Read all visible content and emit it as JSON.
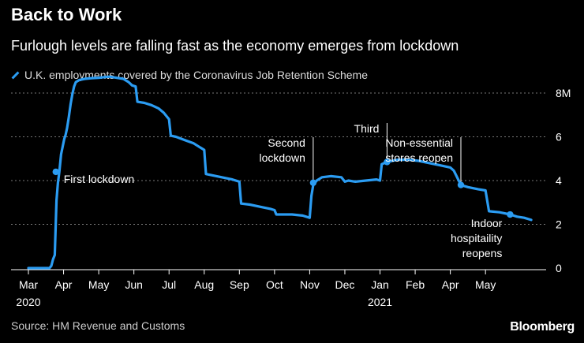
{
  "title": "Back to Work",
  "subtitle": "Furlough levels are falling fast as the economy emerges from lockdown",
  "source": "Source: HM Revenue and Customs",
  "brand": "Bloomberg",
  "colors": {
    "line": "#2b9cf2",
    "background": "#000000",
    "grid": "#777777"
  },
  "chart_data": {
    "type": "line",
    "title": "Back to Work",
    "ylabel": "",
    "xlabel": "",
    "ylim": [
      0,
      8
    ],
    "xlim": [
      0,
      14.5
    ],
    "grid": true,
    "y_ticks": [
      {
        "value": 8,
        "label": "8M"
      },
      {
        "value": 6,
        "label": "6"
      },
      {
        "value": 4,
        "label": "4"
      },
      {
        "value": 2,
        "label": "2"
      },
      {
        "value": 0,
        "label": "0"
      }
    ],
    "x_ticks": [
      {
        "value": 0,
        "label": "Mar",
        "year": "2020"
      },
      {
        "value": 1,
        "label": "Apr",
        "year": ""
      },
      {
        "value": 2,
        "label": "May",
        "year": ""
      },
      {
        "value": 3,
        "label": "Jun",
        "year": ""
      },
      {
        "value": 4,
        "label": "Jul",
        "year": ""
      },
      {
        "value": 5,
        "label": "Aug",
        "year": ""
      },
      {
        "value": 6,
        "label": "Sep",
        "year": ""
      },
      {
        "value": 7,
        "label": "Oct",
        "year": ""
      },
      {
        "value": 8,
        "label": "Nov",
        "year": ""
      },
      {
        "value": 9,
        "label": "Dec",
        "year": ""
      },
      {
        "value": 10,
        "label": "Jan",
        "year": "2021"
      },
      {
        "value": 11,
        "label": "Feb",
        "year": ""
      },
      {
        "value": 12,
        "label": "Apr",
        "year": ""
      },
      {
        "value": 13,
        "label": "May",
        "year": ""
      }
    ],
    "series": [
      {
        "name": "U.K. employments covered by the Coronavirus Job Retention Scheme",
        "points": [
          [
            0,
            0
          ],
          [
            0.6,
            0
          ],
          [
            0.65,
            0.1
          ],
          [
            0.7,
            0.4
          ],
          [
            0.75,
            0.6
          ],
          [
            0.78,
            2.2
          ],
          [
            0.8,
            3.1
          ],
          [
            0.84,
            3.9
          ],
          [
            0.88,
            4.4
          ],
          [
            0.93,
            5.2
          ],
          [
            0.98,
            5.6
          ],
          [
            1.02,
            5.9
          ],
          [
            1.06,
            6.1
          ],
          [
            1.1,
            6.4
          ],
          [
            1.15,
            6.9
          ],
          [
            1.2,
            7.5
          ],
          [
            1.25,
            7.95
          ],
          [
            1.3,
            8.3
          ],
          [
            1.35,
            8.5
          ],
          [
            1.45,
            8.6
          ],
          [
            1.6,
            8.65
          ],
          [
            1.8,
            8.68
          ],
          [
            2.0,
            8.7
          ],
          [
            2.3,
            8.75
          ],
          [
            2.5,
            8.7
          ],
          [
            2.7,
            8.65
          ],
          [
            2.85,
            8.5
          ],
          [
            2.95,
            8.35
          ],
          [
            3.05,
            8.3
          ],
          [
            3.1,
            7.6
          ],
          [
            3.3,
            7.55
          ],
          [
            3.5,
            7.45
          ],
          [
            3.7,
            7.3
          ],
          [
            3.85,
            7.1
          ],
          [
            4.0,
            6.8
          ],
          [
            4.05,
            6.05
          ],
          [
            4.2,
            6.0
          ],
          [
            4.45,
            5.85
          ],
          [
            4.7,
            5.7
          ],
          [
            4.9,
            5.5
          ],
          [
            5.0,
            5.4
          ],
          [
            5.05,
            4.3
          ],
          [
            5.2,
            4.25
          ],
          [
            5.5,
            4.15
          ],
          [
            5.8,
            4.05
          ],
          [
            6.0,
            3.95
          ],
          [
            6.05,
            2.95
          ],
          [
            6.3,
            2.9
          ],
          [
            6.6,
            2.8
          ],
          [
            6.9,
            2.7
          ],
          [
            7.0,
            2.65
          ],
          [
            7.05,
            2.45
          ],
          [
            7.5,
            2.45
          ],
          [
            7.8,
            2.4
          ],
          [
            8.0,
            2.3
          ],
          [
            8.05,
            3.3
          ],
          [
            8.1,
            3.8
          ],
          [
            8.2,
            4.0
          ],
          [
            8.35,
            4.15
          ],
          [
            8.6,
            4.2
          ],
          [
            8.9,
            4.15
          ],
          [
            9.0,
            3.95
          ],
          [
            9.1,
            4.0
          ],
          [
            9.3,
            3.95
          ],
          [
            9.6,
            4.0
          ],
          [
            9.9,
            4.05
          ],
          [
            10.0,
            4.0
          ],
          [
            10.05,
            4.75
          ],
          [
            10.2,
            4.85
          ],
          [
            10.5,
            4.95
          ],
          [
            10.8,
            4.95
          ],
          [
            11.1,
            4.9
          ],
          [
            11.4,
            4.8
          ],
          [
            11.7,
            4.7
          ],
          [
            12.0,
            4.6
          ],
          [
            12.1,
            4.45
          ],
          [
            12.3,
            3.8
          ],
          [
            12.5,
            3.7
          ],
          [
            12.8,
            3.6
          ],
          [
            13.0,
            3.55
          ],
          [
            13.1,
            2.6
          ],
          [
            13.4,
            2.55
          ],
          [
            13.7,
            2.45
          ],
          [
            13.9,
            2.35
          ],
          [
            14.1,
            2.3
          ],
          [
            14.3,
            2.2
          ]
        ]
      }
    ],
    "markers": [
      {
        "x": 0.78,
        "y": 4.4
      },
      {
        "x": 8.1,
        "y": 3.9
      },
      {
        "x": 10.2,
        "y": 4.85
      },
      {
        "x": 12.3,
        "y": 3.8
      },
      {
        "x": 13.7,
        "y": 2.45
      }
    ],
    "annotations": [
      {
        "lines": [
          "First lockdown"
        ],
        "x": 0.78,
        "y": 4.4,
        "anchor": "start",
        "leader": false
      },
      {
        "lines": [
          "Second",
          "lockdown"
        ],
        "x": 8.1,
        "y": 3.9,
        "anchor": "end",
        "leader": true
      },
      {
        "lines": [
          "Third"
        ],
        "x": 10.2,
        "y": 4.85,
        "anchor": "end",
        "leader": true
      },
      {
        "lines": [
          "Non-essential",
          "stores reopen"
        ],
        "x": 12.3,
        "y": 3.8,
        "anchor": "end",
        "leader": true
      },
      {
        "lines": [
          "Indoor",
          "hospitaility",
          "reopens"
        ],
        "x": 13.7,
        "y": 2.45,
        "anchor": "end",
        "leader": true
      }
    ]
  },
  "legend_label": "U.K. employments covered by the Coronavirus Job Retention Scheme"
}
